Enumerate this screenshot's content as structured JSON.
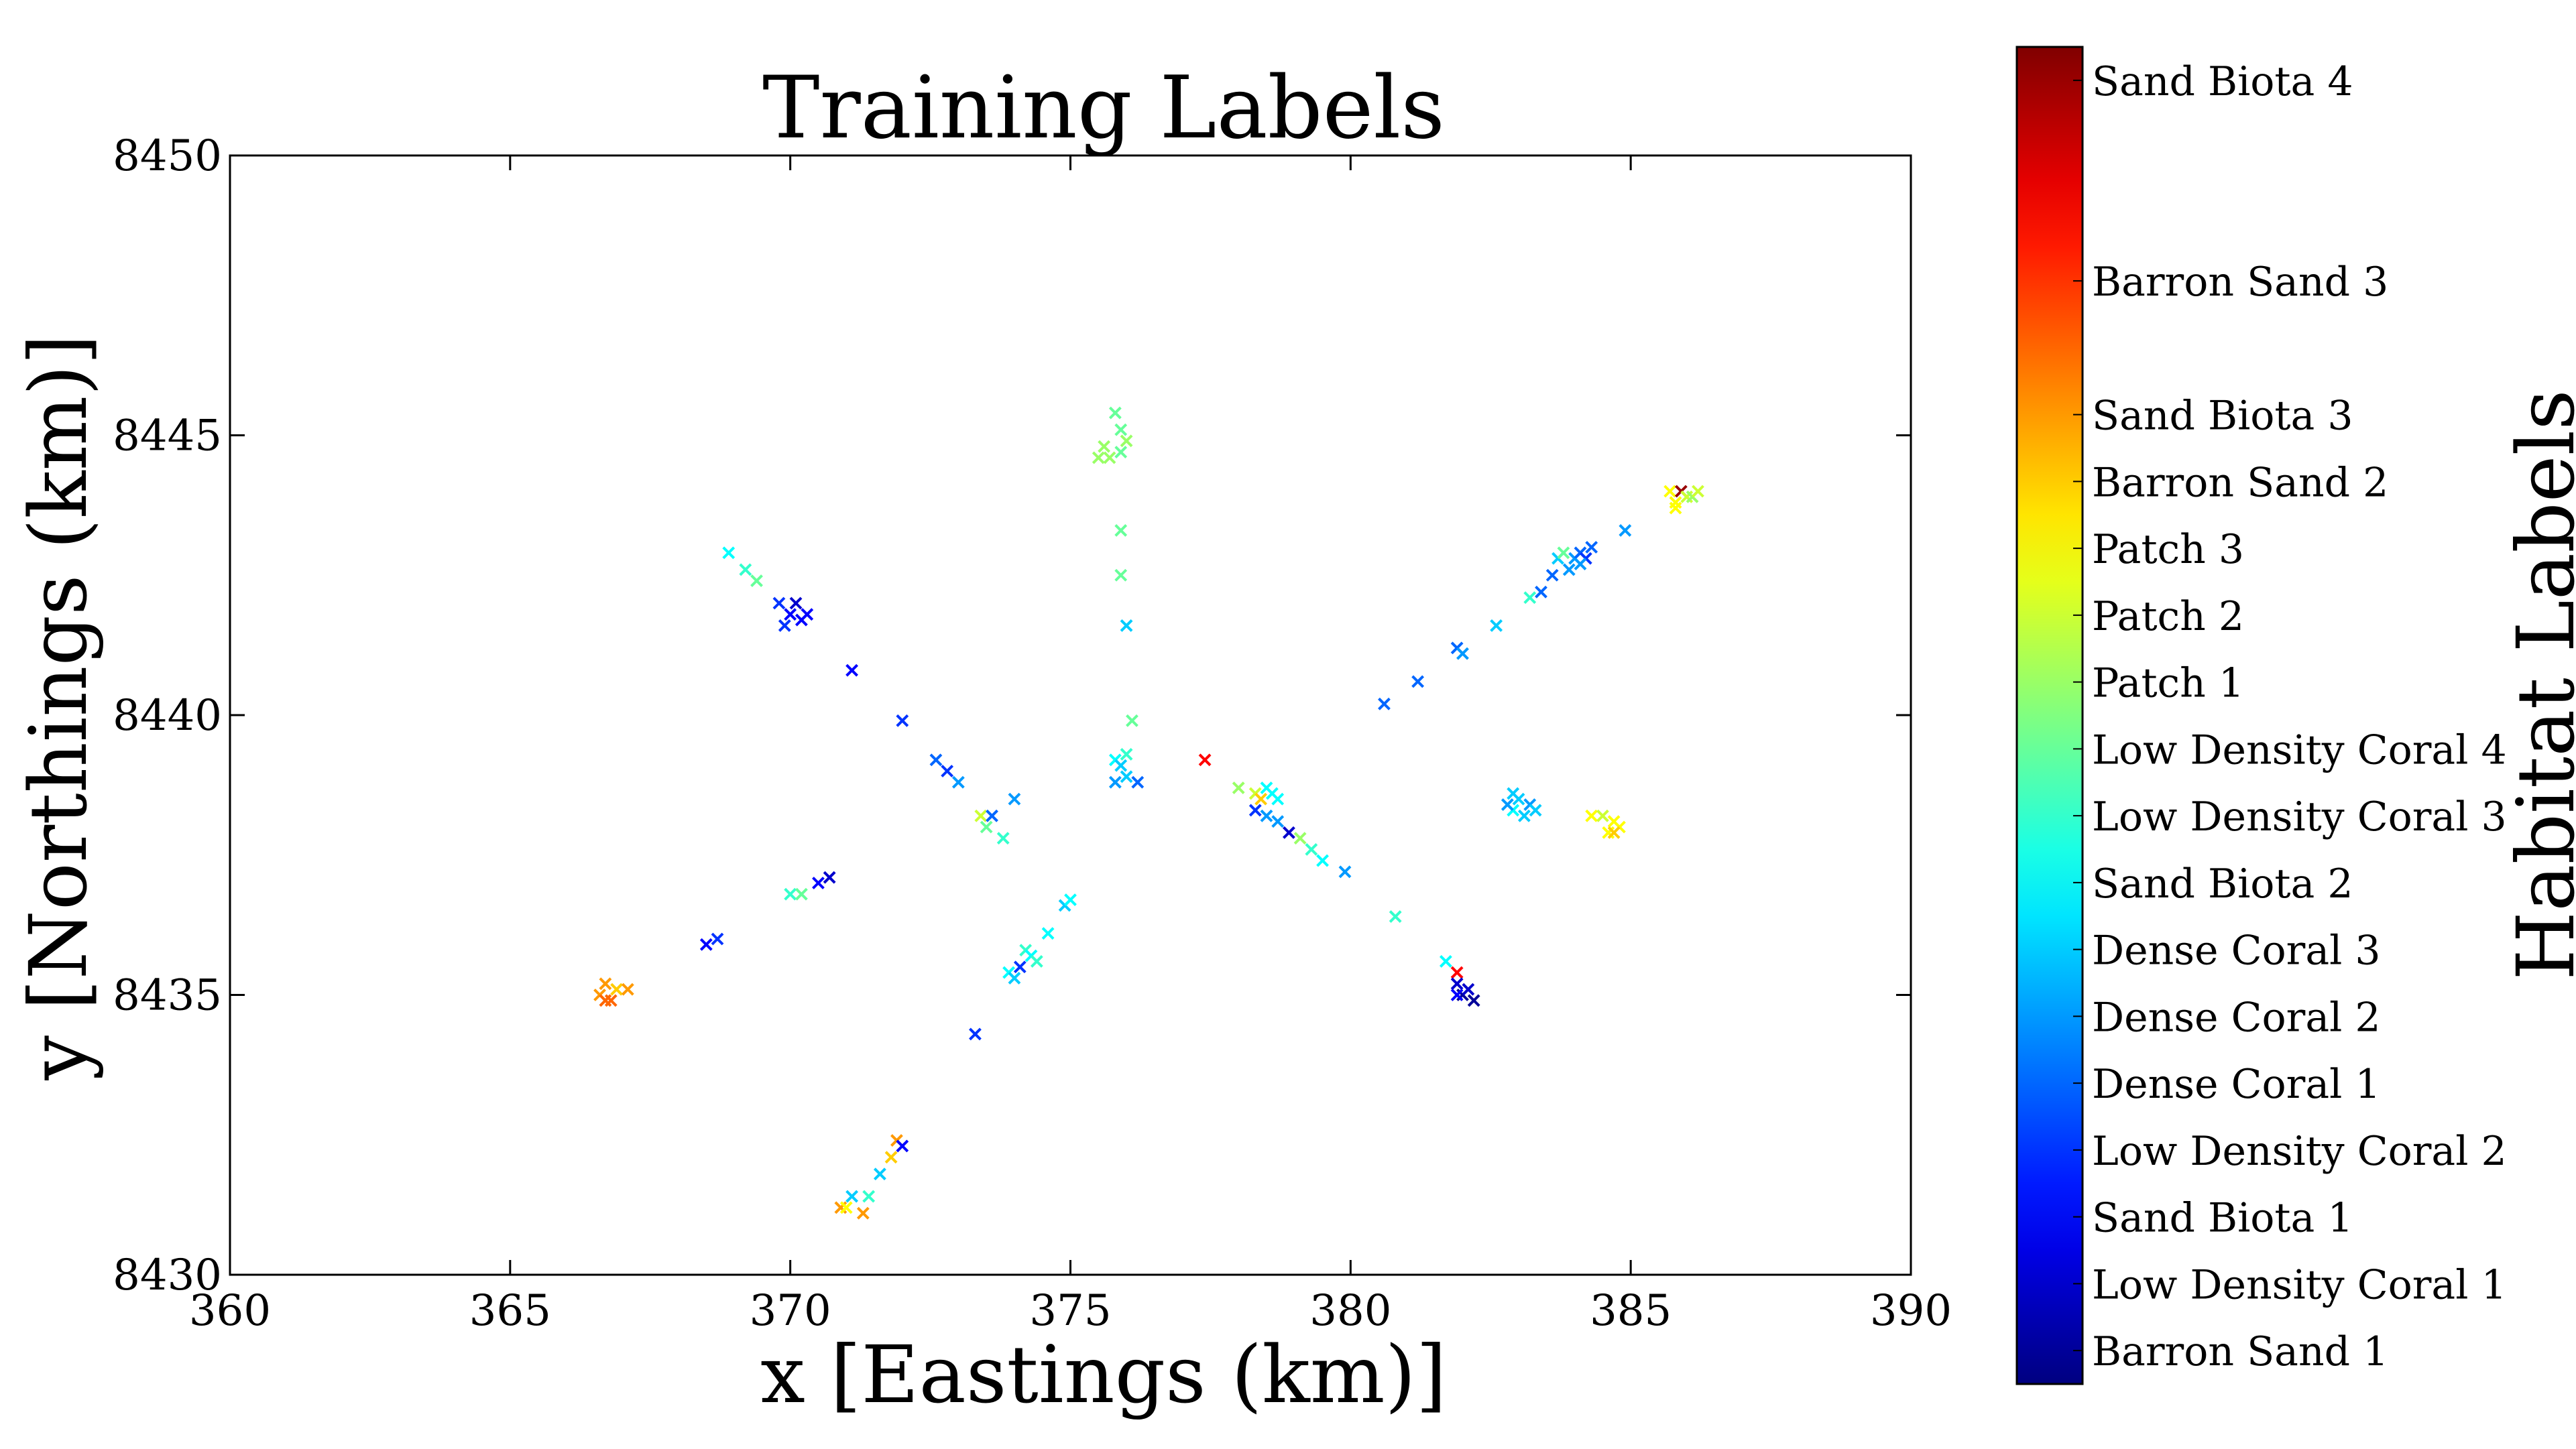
{
  "chart_data": {
    "type": "scatter",
    "title": "Training Labels",
    "xlabel": "x [Eastings (km)]",
    "ylabel": "y [Northings (km)]",
    "xlim": [
      360,
      390
    ],
    "ylim": [
      8430,
      8450
    ],
    "xticks": [
      360,
      365,
      370,
      375,
      380,
      385,
      390
    ],
    "yticks": [
      8430,
      8435,
      8440,
      8445,
      8450
    ],
    "grid": false,
    "marker": "x",
    "colormap": "jet",
    "colorbar": {
      "label": "Habitat Labels",
      "placement": "right",
      "class_count": 20,
      "tick_labels": [
        {
          "class_index": 0,
          "label": "Barron Sand 1"
        },
        {
          "class_index": 1,
          "label": "Low Density Coral 1"
        },
        {
          "class_index": 2,
          "label": "Sand Biota 1"
        },
        {
          "class_index": 3,
          "label": "Low Density Coral 2"
        },
        {
          "class_index": 4,
          "label": "Dense Coral 1"
        },
        {
          "class_index": 5,
          "label": "Dense Coral 2"
        },
        {
          "class_index": 6,
          "label": "Dense Coral 3"
        },
        {
          "class_index": 7,
          "label": "Sand Biota 2"
        },
        {
          "class_index": 8,
          "label": "Low Density Coral 3"
        },
        {
          "class_index": 9,
          "label": "Low Density Coral 4"
        },
        {
          "class_index": 10,
          "label": "Patch 1"
        },
        {
          "class_index": 11,
          "label": "Patch 2"
        },
        {
          "class_index": 12,
          "label": "Patch 3"
        },
        {
          "class_index": 13,
          "label": "Barron Sand 2"
        },
        {
          "class_index": 14,
          "label": "Sand Biota 3"
        },
        {
          "class_index": 16,
          "label": "Barron Sand 3"
        },
        {
          "class_index": 19,
          "label": "Sand Biota 4"
        }
      ]
    },
    "points": [
      {
        "x": 375.8,
        "y": 8445.4,
        "c": 9
      },
      {
        "x": 375.9,
        "y": 8445.1,
        "c": 9
      },
      {
        "x": 375.6,
        "y": 8444.8,
        "c": 10
      },
      {
        "x": 375.7,
        "y": 8444.6,
        "c": 10
      },
      {
        "x": 375.9,
        "y": 8444.7,
        "c": 9
      },
      {
        "x": 376.0,
        "y": 8444.9,
        "c": 10
      },
      {
        "x": 375.5,
        "y": 8444.6,
        "c": 10
      },
      {
        "x": 375.9,
        "y": 8443.3,
        "c": 9
      },
      {
        "x": 375.9,
        "y": 8442.5,
        "c": 9
      },
      {
        "x": 376.0,
        "y": 8441.6,
        "c": 6
      },
      {
        "x": 376.1,
        "y": 8439.9,
        "c": 9
      },
      {
        "x": 376.0,
        "y": 8439.3,
        "c": 8
      },
      {
        "x": 375.8,
        "y": 8439.2,
        "c": 7
      },
      {
        "x": 375.9,
        "y": 8439.1,
        "c": 6
      },
      {
        "x": 376.0,
        "y": 8438.9,
        "c": 6
      },
      {
        "x": 375.8,
        "y": 8438.8,
        "c": 5
      },
      {
        "x": 376.2,
        "y": 8438.8,
        "c": 4
      },
      {
        "x": 377.4,
        "y": 8439.2,
        "c": 17
      },
      {
        "x": 368.9,
        "y": 8442.9,
        "c": 7
      },
      {
        "x": 369.2,
        "y": 8442.6,
        "c": 8
      },
      {
        "x": 369.4,
        "y": 8442.4,
        "c": 9
      },
      {
        "x": 369.8,
        "y": 8442.0,
        "c": 3
      },
      {
        "x": 370.0,
        "y": 8441.8,
        "c": 2
      },
      {
        "x": 370.1,
        "y": 8442.0,
        "c": 1
      },
      {
        "x": 370.2,
        "y": 8441.7,
        "c": 2
      },
      {
        "x": 369.9,
        "y": 8441.6,
        "c": 3
      },
      {
        "x": 370.3,
        "y": 8441.8,
        "c": 2
      },
      {
        "x": 371.1,
        "y": 8440.8,
        "c": 2
      },
      {
        "x": 372.0,
        "y": 8439.9,
        "c": 3
      },
      {
        "x": 372.6,
        "y": 8439.2,
        "c": 4
      },
      {
        "x": 372.8,
        "y": 8439.0,
        "c": 3
      },
      {
        "x": 373.0,
        "y": 8438.8,
        "c": 5
      },
      {
        "x": 373.4,
        "y": 8438.2,
        "c": 11
      },
      {
        "x": 373.5,
        "y": 8438.0,
        "c": 9
      },
      {
        "x": 373.6,
        "y": 8438.2,
        "c": 4
      },
      {
        "x": 373.8,
        "y": 8437.8,
        "c": 8
      },
      {
        "x": 374.0,
        "y": 8438.5,
        "c": 5
      },
      {
        "x": 373.3,
        "y": 8434.3,
        "c": 3
      },
      {
        "x": 370.0,
        "y": 8436.8,
        "c": 8
      },
      {
        "x": 370.2,
        "y": 8436.8,
        "c": 9
      },
      {
        "x": 370.5,
        "y": 8437.0,
        "c": 2
      },
      {
        "x": 370.7,
        "y": 8437.1,
        "c": 1
      },
      {
        "x": 368.5,
        "y": 8435.9,
        "c": 2
      },
      {
        "x": 368.7,
        "y": 8436.0,
        "c": 3
      },
      {
        "x": 366.6,
        "y": 8435.0,
        "c": 14
      },
      {
        "x": 366.7,
        "y": 8435.2,
        "c": 14
      },
      {
        "x": 366.8,
        "y": 8434.9,
        "c": 15
      },
      {
        "x": 366.9,
        "y": 8435.1,
        "c": 13
      },
      {
        "x": 367.1,
        "y": 8435.1,
        "c": 14
      },
      {
        "x": 366.7,
        "y": 8434.9,
        "c": 15
      },
      {
        "x": 373.9,
        "y": 8435.4,
        "c": 7
      },
      {
        "x": 374.0,
        "y": 8435.3,
        "c": 6
      },
      {
        "x": 374.1,
        "y": 8435.5,
        "c": 3
      },
      {
        "x": 374.2,
        "y": 8435.8,
        "c": 8
      },
      {
        "x": 374.3,
        "y": 8435.7,
        "c": 7
      },
      {
        "x": 374.4,
        "y": 8435.6,
        "c": 8
      },
      {
        "x": 374.6,
        "y": 8436.1,
        "c": 7
      },
      {
        "x": 374.9,
        "y": 8436.6,
        "c": 6
      },
      {
        "x": 375.0,
        "y": 8436.7,
        "c": 7
      },
      {
        "x": 371.9,
        "y": 8432.4,
        "c": 14
      },
      {
        "x": 372.0,
        "y": 8432.3,
        "c": 2
      },
      {
        "x": 371.8,
        "y": 8432.1,
        "c": 13
      },
      {
        "x": 371.6,
        "y": 8431.8,
        "c": 6
      },
      {
        "x": 371.4,
        "y": 8431.4,
        "c": 8
      },
      {
        "x": 371.1,
        "y": 8431.4,
        "c": 6
      },
      {
        "x": 370.9,
        "y": 8431.2,
        "c": 14
      },
      {
        "x": 371.0,
        "y": 8431.2,
        "c": 12
      },
      {
        "x": 371.3,
        "y": 8431.1,
        "c": 14
      },
      {
        "x": 378.0,
        "y": 8438.7,
        "c": 10
      },
      {
        "x": 378.3,
        "y": 8438.6,
        "c": 11
      },
      {
        "x": 378.4,
        "y": 8438.5,
        "c": 13
      },
      {
        "x": 378.5,
        "y": 8438.7,
        "c": 7
      },
      {
        "x": 378.6,
        "y": 8438.6,
        "c": 7
      },
      {
        "x": 378.7,
        "y": 8438.5,
        "c": 7
      },
      {
        "x": 378.3,
        "y": 8438.3,
        "c": 3
      },
      {
        "x": 378.5,
        "y": 8438.2,
        "c": 5
      },
      {
        "x": 378.7,
        "y": 8438.1,
        "c": 5
      },
      {
        "x": 378.9,
        "y": 8437.9,
        "c": 1
      },
      {
        "x": 379.1,
        "y": 8437.8,
        "c": 10
      },
      {
        "x": 379.3,
        "y": 8437.6,
        "c": 8
      },
      {
        "x": 379.5,
        "y": 8437.4,
        "c": 7
      },
      {
        "x": 379.9,
        "y": 8437.2,
        "c": 5
      },
      {
        "x": 380.8,
        "y": 8436.4,
        "c": 8
      },
      {
        "x": 381.7,
        "y": 8435.6,
        "c": 7
      },
      {
        "x": 381.9,
        "y": 8435.4,
        "c": 17
      },
      {
        "x": 381.9,
        "y": 8435.2,
        "c": 1
      },
      {
        "x": 382.0,
        "y": 8435.0,
        "c": 0
      },
      {
        "x": 382.1,
        "y": 8435.1,
        "c": 1
      },
      {
        "x": 382.2,
        "y": 8434.9,
        "c": 0
      },
      {
        "x": 381.9,
        "y": 8435.0,
        "c": 2
      },
      {
        "x": 380.6,
        "y": 8440.2,
        "c": 4
      },
      {
        "x": 381.2,
        "y": 8440.6,
        "c": 4
      },
      {
        "x": 381.9,
        "y": 8441.2,
        "c": 4
      },
      {
        "x": 382.0,
        "y": 8441.1,
        "c": 5
      },
      {
        "x": 382.6,
        "y": 8441.6,
        "c": 6
      },
      {
        "x": 383.2,
        "y": 8442.1,
        "c": 8
      },
      {
        "x": 383.4,
        "y": 8442.2,
        "c": 4
      },
      {
        "x": 383.6,
        "y": 8442.5,
        "c": 4
      },
      {
        "x": 383.7,
        "y": 8442.8,
        "c": 6
      },
      {
        "x": 383.8,
        "y": 8442.9,
        "c": 9
      },
      {
        "x": 383.9,
        "y": 8442.6,
        "c": 5
      },
      {
        "x": 384.0,
        "y": 8442.8,
        "c": 5
      },
      {
        "x": 384.1,
        "y": 8442.9,
        "c": 4
      },
      {
        "x": 384.2,
        "y": 8442.8,
        "c": 3
      },
      {
        "x": 384.1,
        "y": 8442.7,
        "c": 5
      },
      {
        "x": 384.3,
        "y": 8443.0,
        "c": 4
      },
      {
        "x": 384.9,
        "y": 8443.3,
        "c": 5
      },
      {
        "x": 385.7,
        "y": 8444.0,
        "c": 12
      },
      {
        "x": 385.8,
        "y": 8443.8,
        "c": 12
      },
      {
        "x": 385.9,
        "y": 8444.0,
        "c": 19
      },
      {
        "x": 386.0,
        "y": 8443.9,
        "c": 11
      },
      {
        "x": 386.1,
        "y": 8443.9,
        "c": 10
      },
      {
        "x": 386.2,
        "y": 8444.0,
        "c": 11
      },
      {
        "x": 385.8,
        "y": 8443.7,
        "c": 12
      },
      {
        "x": 382.9,
        "y": 8438.6,
        "c": 6
      },
      {
        "x": 383.0,
        "y": 8438.5,
        "c": 6
      },
      {
        "x": 382.9,
        "y": 8438.3,
        "c": 7
      },
      {
        "x": 383.2,
        "y": 8438.4,
        "c": 5
      },
      {
        "x": 383.1,
        "y": 8438.2,
        "c": 6
      },
      {
        "x": 383.3,
        "y": 8438.3,
        "c": 6
      },
      {
        "x": 382.8,
        "y": 8438.4,
        "c": 5
      },
      {
        "x": 384.3,
        "y": 8438.2,
        "c": 12
      },
      {
        "x": 384.5,
        "y": 8438.2,
        "c": 11
      },
      {
        "x": 384.6,
        "y": 8437.9,
        "c": 12
      },
      {
        "x": 384.7,
        "y": 8438.1,
        "c": 12
      },
      {
        "x": 384.8,
        "y": 8438.0,
        "c": 12
      },
      {
        "x": 384.7,
        "y": 8437.9,
        "c": 13
      }
    ]
  }
}
